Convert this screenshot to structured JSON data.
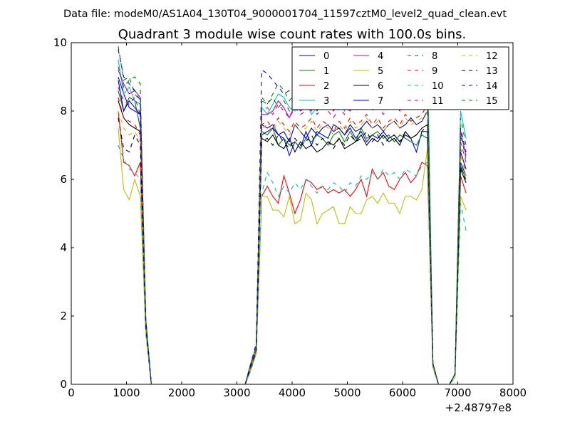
{
  "page": {
    "suptitle": "Data file: modeM0/AS1A04_130T04_9000001704_11597cztM0_level2_quad_clean.evt"
  },
  "chart_data": {
    "type": "line",
    "title": "Quadrant 3 module wise count rates with 100.0s bins.",
    "xlabel": "",
    "ylabel": "",
    "x_offset_label": "+2.48797e8",
    "xlim": [
      0,
      8000
    ],
    "ylim": [
      0,
      10
    ],
    "xticks": [
      0,
      1000,
      2000,
      3000,
      4000,
      5000,
      6000,
      7000,
      8000
    ],
    "yticks": [
      0,
      2,
      4,
      6,
      8,
      10
    ],
    "grid": false,
    "legend_position": "top-right",
    "legend_columns": 4,
    "x": [
      850,
      950,
      1050,
      1150,
      1250,
      1350,
      1450,
      1550,
      1650,
      1750,
      1850,
      1950,
      2050,
      2150,
      2250,
      2350,
      2450,
      2550,
      2650,
      2750,
      2850,
      2950,
      3050,
      3150,
      3250,
      3350,
      3450,
      3550,
      3650,
      3750,
      3850,
      3950,
      4050,
      4150,
      4250,
      4350,
      4450,
      4550,
      4650,
      4750,
      4850,
      4950,
      5050,
      5150,
      5250,
      5350,
      5450,
      5550,
      5650,
      5750,
      5850,
      5950,
      6050,
      6150,
      6250,
      6350,
      6450,
      6550,
      6650,
      6750,
      6850,
      6950,
      7050,
      7150
    ],
    "series": [
      {
        "name": "0",
        "color": "#0000ff",
        "dash": "solid",
        "values": [
          9.0,
          8.5,
          8.1,
          8.0,
          7.9,
          1.8,
          0,
          0,
          0,
          0,
          0,
          0,
          0,
          0,
          0,
          0,
          0,
          0,
          0,
          0,
          0,
          0,
          0,
          0,
          0.5,
          1.0,
          7.6,
          7.5,
          7.6,
          7.3,
          7.2,
          6.7,
          7.1,
          6.9,
          7.4,
          7.0,
          7.4,
          7.3,
          7.2,
          7.6,
          7.5,
          7.3,
          7.5,
          7.2,
          7.4,
          7.1,
          7.3,
          7.2,
          7.4,
          7.2,
          7.3,
          7.1,
          7.3,
          7.2,
          6.8,
          7.4,
          7.4,
          0.6,
          0,
          0,
          0,
          0.3,
          6.5,
          6.1
        ]
      },
      {
        "name": "1",
        "color": "#008000",
        "dash": "solid",
        "values": [
          8.6,
          8.0,
          8.4,
          8.3,
          7.5,
          1.8,
          0,
          0,
          0,
          0,
          0,
          0,
          0,
          0,
          0,
          0,
          0,
          0,
          0,
          0,
          0,
          0,
          0,
          0,
          0.5,
          1.0,
          7.4,
          7.3,
          7.5,
          7.0,
          7.2,
          7.0,
          7.1,
          6.9,
          7.2,
          7.1,
          7.3,
          7.2,
          7.0,
          7.3,
          7.4,
          7.1,
          7.4,
          7.1,
          7.5,
          7.2,
          7.3,
          7.4,
          7.2,
          7.3,
          7.1,
          7.3,
          7.2,
          7.1,
          7.0,
          7.3,
          7.2,
          0.6,
          0,
          0,
          0,
          0.3,
          6.4,
          6.0
        ]
      },
      {
        "name": "2",
        "color": "#ff0000",
        "dash": "solid",
        "values": [
          8.0,
          6.5,
          6.4,
          6.1,
          6.5,
          1.6,
          0,
          0,
          0,
          0,
          0,
          0,
          0,
          0,
          0,
          0,
          0,
          0,
          0,
          0,
          0,
          0,
          0,
          0,
          0.5,
          0.9,
          5.5,
          5.8,
          5.5,
          5.3,
          6.1,
          5.6,
          5.0,
          5.4,
          6.0,
          5.9,
          5.7,
          5.8,
          5.6,
          5.7,
          5.6,
          5.7,
          5.5,
          5.7,
          6.0,
          5.5,
          6.3,
          6.0,
          6.2,
          5.8,
          5.7,
          6.0,
          6.2,
          5.9,
          6.1,
          6.5,
          6.4,
          0.5,
          0,
          0,
          0,
          0.3,
          6.1,
          5.6
        ]
      },
      {
        "name": "3",
        "color": "#00bfbf",
        "dash": "solid",
        "values": [
          9.5,
          8.5,
          8.7,
          8.3,
          8.2,
          1.9,
          0,
          0,
          0,
          0,
          0,
          0,
          0,
          0,
          0,
          0,
          0,
          0,
          0,
          0,
          0,
          0,
          0,
          0,
          0.6,
          1.1,
          8.1,
          7.9,
          8.2,
          8.5,
          8.4,
          8.1,
          8.0,
          8.2,
          8.3,
          7.9,
          8.1,
          8.4,
          8.2,
          8.6,
          8.3,
          8.0,
          8.5,
          8.4,
          8.1,
          8.2,
          8.6,
          8.3,
          8.4,
          8.2,
          8.5,
          8.1,
          8.3,
          8.4,
          8.4,
          8.6,
          9.8,
          0.6,
          0,
          0,
          0,
          0.3,
          8.0,
          7.2
        ]
      },
      {
        "name": "4",
        "color": "#bf00bf",
        "dash": "solid",
        "values": [
          9.2,
          8.8,
          8.5,
          8.6,
          8.4,
          1.9,
          0,
          0,
          0,
          0,
          0,
          0,
          0,
          0,
          0,
          0,
          0,
          0,
          0,
          0,
          0,
          0,
          0,
          0,
          0.6,
          1.1,
          7.9,
          7.9,
          8.0,
          8.3,
          8.1,
          7.8,
          8.2,
          8.0,
          8.1,
          8.0,
          8.3,
          8.1,
          8.2,
          8.0,
          8.2,
          8.1,
          8.0,
          8.2,
          8.1,
          8.3,
          8.5,
          8.2,
          8.3,
          8.4,
          8.1,
          8.2,
          8.3,
          8.6,
          8.5,
          8.2,
          8.6,
          0.6,
          0,
          0,
          0,
          0.3,
          7.4,
          6.7
        ]
      },
      {
        "name": "5",
        "color": "#bfbf00",
        "dash": "solid",
        "values": [
          7.5,
          5.7,
          5.4,
          6.0,
          5.5,
          1.5,
          0,
          0,
          0,
          0,
          0,
          0,
          0,
          0,
          0,
          0,
          0,
          0,
          0,
          0,
          0,
          0,
          0,
          0,
          0.4,
          0.9,
          5.5,
          5.5,
          5.1,
          5.1,
          4.9,
          5.5,
          4.7,
          4.8,
          5.6,
          5.4,
          4.7,
          5.0,
          5.1,
          5.2,
          4.7,
          4.7,
          5.2,
          5.0,
          5.0,
          5.4,
          5.5,
          5.3,
          5.6,
          5.3,
          5.3,
          5.0,
          5.5,
          5.5,
          5.4,
          5.7,
          6.9,
          0.5,
          0,
          0,
          0,
          0.2,
          5.5,
          5.1
        ]
      },
      {
        "name": "6",
        "color": "#000000",
        "dash": "solid",
        "values": [
          8.3,
          7.8,
          7.6,
          7.5,
          7.4,
          1.8,
          0,
          0,
          0,
          0,
          0,
          0,
          0,
          0,
          0,
          0,
          0,
          0,
          0,
          0,
          0,
          0,
          0,
          0,
          0.5,
          1.0,
          7.2,
          7.1,
          7.3,
          7.0,
          6.9,
          7.2,
          6.8,
          7.1,
          6.9,
          7.0,
          6.8,
          6.9,
          7.1,
          7.0,
          7.2,
          6.9,
          7.0,
          7.1,
          7.3,
          7.0,
          7.2,
          7.1,
          7.3,
          7.1,
          7.2,
          7.0,
          7.4,
          7.2,
          7.3,
          7.5,
          7.6,
          0.6,
          0,
          0,
          0,
          0.3,
          6.3,
          5.9
        ]
      },
      {
        "name": "7",
        "color": "#0000bf",
        "dash": "solid",
        "values": [
          8.9,
          8.0,
          8.3,
          8.1,
          7.9,
          1.8,
          0,
          0,
          0,
          0,
          0,
          0,
          0,
          0,
          0,
          0,
          0,
          0,
          0,
          0,
          0,
          0,
          0,
          0,
          0.5,
          1.0,
          7.3,
          7.4,
          7.5,
          7.3,
          7.4,
          7.1,
          7.6,
          7.4,
          7.2,
          7.5,
          7.3,
          7.5,
          7.6,
          7.4,
          7.5,
          7.3,
          7.6,
          7.4,
          7.5,
          7.7,
          7.5,
          7.6,
          7.4,
          7.6,
          7.7,
          7.5,
          7.6,
          7.8,
          7.6,
          7.7,
          8.0,
          0.6,
          0,
          0,
          0,
          0.3,
          6.8,
          6.3
        ]
      },
      {
        "name": "8",
        "color": "#008000",
        "dash": "dashed",
        "values": [
          9.9,
          8.9,
          9.0,
          8.5,
          8.3,
          1.9,
          0,
          0,
          0,
          0,
          0,
          0,
          0,
          0,
          0,
          0,
          0,
          0,
          0,
          0,
          0,
          0,
          0,
          0,
          0.6,
          1.1,
          8.4,
          8.2,
          8.5,
          8.8,
          8.6,
          8.3,
          8.5,
          8.7,
          8.4,
          8.6,
          8.2,
          8.5,
          8.4,
          8.7,
          8.5,
          8.3,
          8.6,
          8.4,
          8.5,
          8.8,
          8.5,
          8.6,
          8.4,
          8.7,
          8.5,
          8.6,
          8.8,
          8.5,
          8.7,
          8.6,
          9.0,
          0.6,
          0,
          0,
          0,
          0.3,
          7.8,
          7.0
        ]
      },
      {
        "name": "9",
        "color": "#ff0000",
        "dash": "dashed",
        "values": [
          8.4,
          7.8,
          7.7,
          7.6,
          7.3,
          1.8,
          0,
          0,
          0,
          0,
          0,
          0,
          0,
          0,
          0,
          0,
          0,
          0,
          0,
          0,
          0,
          0,
          0,
          0,
          0.5,
          1.0,
          7.6,
          7.7,
          7.5,
          7.8,
          7.6,
          7.4,
          7.7,
          7.5,
          7.6,
          7.8,
          7.5,
          7.7,
          7.6,
          7.4,
          7.7,
          7.5,
          7.8,
          7.6,
          7.7,
          7.9,
          7.6,
          7.8,
          7.5,
          7.7,
          7.8,
          7.6,
          7.9,
          7.7,
          7.8,
          7.9,
          8.2,
          0.6,
          0,
          0,
          0,
          0.3,
          6.9,
          6.2
        ]
      },
      {
        "name": "10",
        "color": "#00bfbf",
        "dash": "dashed",
        "values": [
          7.0,
          6.6,
          6.3,
          6.2,
          6.0,
          1.5,
          0,
          0,
          0,
          0,
          0,
          0,
          0,
          0,
          0,
          0,
          0,
          0,
          0,
          0,
          0,
          0,
          0,
          0,
          0.4,
          0.9,
          5.6,
          6.2,
          5.9,
          5.5,
          5.8,
          5.6,
          5.9,
          5.7,
          6.0,
          5.8,
          5.6,
          5.8,
          5.7,
          5.9,
          5.8,
          5.6,
          5.9,
          5.8,
          6.1,
          6.0,
          6.2,
          6.0,
          6.3,
          6.1,
          6.2,
          6.0,
          6.3,
          6.2,
          6.1,
          6.4,
          6.5,
          0.5,
          0,
          0,
          0,
          0.2,
          5.3,
          4.5
        ]
      },
      {
        "name": "11",
        "color": "#bf00bf",
        "dash": "dashed",
        "values": [
          8.7,
          8.3,
          8.2,
          8.4,
          7.9,
          1.8,
          0,
          0,
          0,
          0,
          0,
          0,
          0,
          0,
          0,
          0,
          0,
          0,
          0,
          0,
          0,
          0,
          0,
          0,
          0.5,
          1.0,
          8.0,
          8.1,
          7.9,
          8.2,
          8.0,
          7.8,
          8.1,
          7.9,
          8.0,
          8.2,
          7.9,
          8.1,
          8.0,
          7.8,
          8.1,
          7.9,
          8.2,
          8.0,
          8.1,
          8.3,
          8.0,
          8.2,
          7.9,
          8.1,
          8.2,
          8.0,
          8.3,
          8.1,
          8.2,
          8.3,
          8.5,
          0.6,
          0,
          0,
          0,
          0.3,
          7.1,
          6.5
        ]
      },
      {
        "name": "12",
        "color": "#bfbf00",
        "dash": "dashed",
        "values": [
          8.0,
          7.5,
          7.3,
          7.4,
          7.1,
          1.7,
          0,
          0,
          0,
          0,
          0,
          0,
          0,
          0,
          0,
          0,
          0,
          0,
          0,
          0,
          0,
          0,
          0,
          0,
          0.5,
          1.0,
          7.5,
          7.6,
          7.4,
          7.7,
          7.5,
          7.3,
          7.6,
          7.4,
          7.5,
          7.7,
          7.4,
          7.6,
          7.5,
          7.3,
          7.6,
          7.4,
          7.7,
          7.5,
          7.6,
          7.8,
          7.5,
          7.7,
          7.4,
          7.6,
          7.7,
          7.5,
          7.8,
          7.6,
          7.7,
          7.8,
          8.0,
          0.6,
          0,
          0,
          0,
          0.3,
          6.7,
          6.1
        ]
      },
      {
        "name": "13",
        "color": "#000000",
        "dash": "dashed",
        "values": [
          7.8,
          6.9,
          6.8,
          7.3,
          7.0,
          1.7,
          0,
          0,
          0,
          0,
          0,
          0,
          0,
          0,
          0,
          0,
          0,
          0,
          0,
          0,
          0,
          0,
          0,
          0,
          0.5,
          1.0,
          7.1,
          7.2,
          7.0,
          7.3,
          7.1,
          6.9,
          7.2,
          7.0,
          7.1,
          7.3,
          7.0,
          7.2,
          7.1,
          6.9,
          7.2,
          7.0,
          7.3,
          7.1,
          7.2,
          7.4,
          7.1,
          7.3,
          7.0,
          7.2,
          7.3,
          7.1,
          7.4,
          7.2,
          7.3,
          7.4,
          7.6,
          0.6,
          0,
          0,
          0,
          0.3,
          6.4,
          5.9
        ]
      },
      {
        "name": "14",
        "color": "#0000ff",
        "dash": "dashed",
        "values": [
          9.8,
          9.0,
          8.8,
          8.6,
          8.3,
          1.9,
          0,
          0,
          0,
          0,
          0,
          0,
          0,
          0,
          0,
          0,
          0,
          0,
          0,
          0,
          0,
          0,
          0,
          0,
          0.6,
          1.2,
          9.2,
          9.1,
          8.9,
          8.7,
          8.5,
          8.6,
          8.4,
          8.7,
          8.5,
          8.6,
          8.3,
          8.5,
          8.4,
          8.6,
          8.5,
          8.3,
          8.6,
          8.4,
          8.5,
          8.7,
          8.4,
          8.6,
          8.3,
          8.5,
          8.6,
          8.4,
          8.7,
          8.5,
          8.6,
          8.7,
          8.9,
          0.6,
          0,
          0,
          0,
          0.3,
          7.5,
          6.8
        ]
      },
      {
        "name": "15",
        "color": "#008000",
        "dash": "dashed",
        "values": [
          9.3,
          8.7,
          8.9,
          9.0,
          8.8,
          1.9,
          0,
          0,
          0,
          0,
          0,
          0,
          0,
          0,
          0,
          0,
          0,
          0,
          0,
          0,
          0,
          0,
          0,
          0,
          0.6,
          1.1,
          8.3,
          8.2,
          8.4,
          8.1,
          8.3,
          8.0,
          8.2,
          8.4,
          8.1,
          8.3,
          8.0,
          8.2,
          8.1,
          8.3,
          8.2,
          8.0,
          8.3,
          8.1,
          8.2,
          8.4,
          8.1,
          8.3,
          8.0,
          8.2,
          8.3,
          8.1,
          8.4,
          8.2,
          8.3,
          8.4,
          8.6,
          0.6,
          0,
          0,
          0,
          0.3,
          7.3,
          6.6
        ]
      }
    ]
  }
}
